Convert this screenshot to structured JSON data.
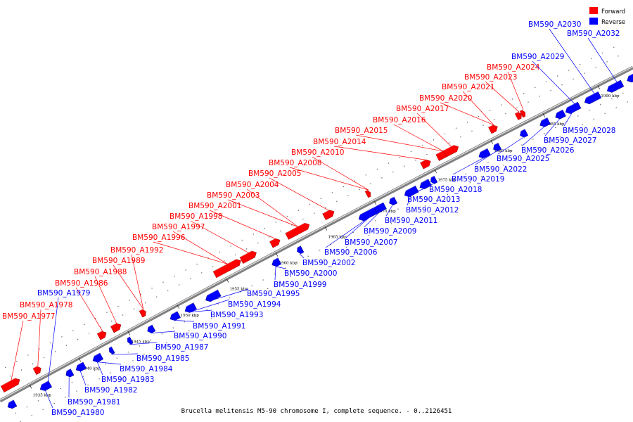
{
  "caption": "Brucella melitensis M5-90 chromosome I, complete sequence. - 0..2126451",
  "colors": {
    "forward": "#ff0000",
    "reverse": "#0000ff",
    "backbone": "#808080"
  },
  "legend": [
    {
      "name": "Forward",
      "color": "#ff0000"
    },
    {
      "name": "Reverse",
      "color": "#0000ff"
    }
  ],
  "ticks": [
    "1935 kbp",
    "1940 kbp",
    "1945 kbp",
    "1950 kbp",
    "1955 kbp",
    "1960 kbp",
    "1965 kbp",
    "1970 kbp",
    "1975 kbp",
    "1980 kbp",
    "1985 kbp",
    "1990 kbp"
  ],
  "forward_labels": [
    "BM590_A1977",
    "BM590_A1978",
    "BM590_A1986",
    "BM590_A1988",
    "BM590_A1989",
    "BM590_A1992",
    "BM590_A1996",
    "BM590_A1997",
    "BM590_A1998",
    "BM590_A2001",
    "BM590_A2003",
    "BM590_A2004",
    "BM590_A2005",
    "BM590_A2008",
    "BM590_A2010",
    "BM590_A2014",
    "BM590_A2015",
    "BM590_A2016",
    "BM590_A2017",
    "BM590_A2020",
    "BM590_A2021",
    "BM590_A2023",
    "BM590_A2024"
  ],
  "reverse_labels_top": [
    "BM590_A2030",
    "BM590_A2032",
    "BM590_A2029",
    "BM590_A1979"
  ],
  "reverse_labels_bottom": [
    "BM590_A2028",
    "BM590_A2027",
    "BM590_A2026",
    "BM590_A2025",
    "BM590_A2022",
    "BM590_A2019",
    "BM590_A2018",
    "BM590_A2013",
    "BM590_A2012",
    "BM590_A2011",
    "BM590_A2009",
    "BM590_A2007",
    "BM590_A2006",
    "BM590_A2002",
    "BM590_A2000",
    "BM590_A1999",
    "BM590_A1995",
    "BM590_A1994",
    "BM590_A1993",
    "BM590_A1991",
    "BM590_A1990",
    "BM590_A1987",
    "BM590_A1985",
    "BM590_A1984",
    "BM590_A1983",
    "BM590_A1982",
    "BM590_A1981",
    "BM590_A1980"
  ]
}
